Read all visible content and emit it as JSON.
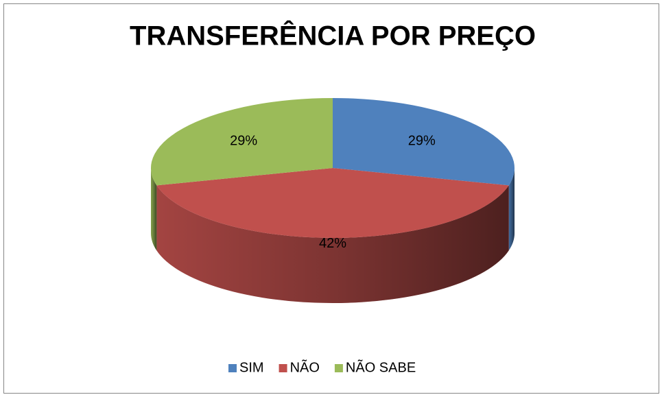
{
  "chart_data": {
    "type": "pie",
    "title": "TRANSFERÊNCIA POR PREÇO",
    "categories": [
      "SIM",
      "NÃO",
      "NÃO SABE"
    ],
    "values": [
      29,
      42,
      29
    ],
    "value_labels": [
      "29%",
      "42%",
      "29%"
    ],
    "colors": [
      "#4f81bd",
      "#c0504d",
      "#9bbb59"
    ],
    "legend": "bottom"
  }
}
